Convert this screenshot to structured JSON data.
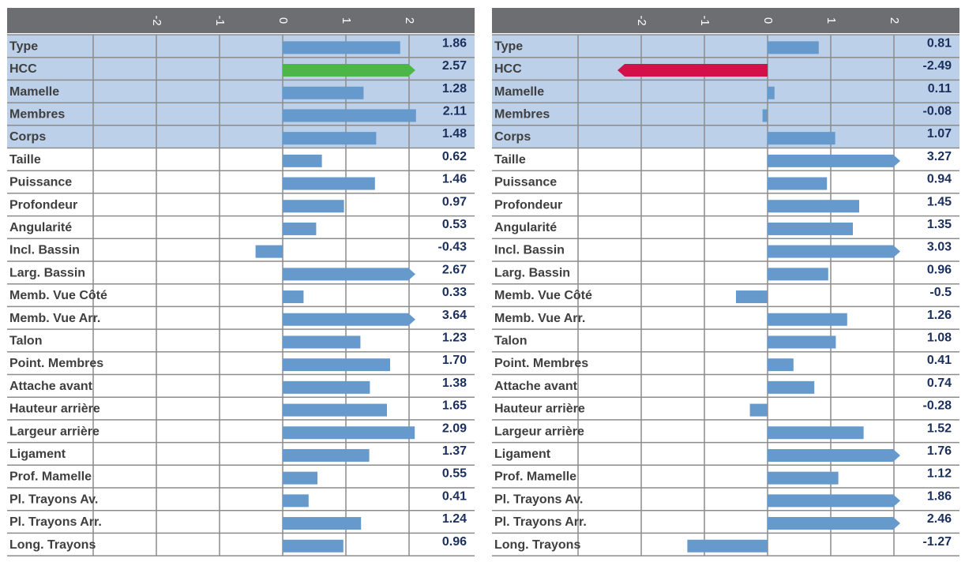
{
  "colors": {
    "header": "#6d6e71",
    "highlight_band": "#bdd0e9",
    "bar": "#6699cc",
    "positive_accent": "#4cb748",
    "negative_accent": "#d4104a",
    "grid": "#8c8c8c",
    "trait_text": "#3f3f3f",
    "value_text": "#1b2f5c"
  },
  "chart_data": [
    {
      "type": "bar",
      "orientation": "horizontal",
      "x_ticks": [
        "-2",
        "-1",
        "0",
        "1",
        "2"
      ],
      "xlim": [
        -4.5,
        2.5
      ],
      "highlighted_categories": [
        "Type",
        "HCC",
        "Mamelle",
        "Membres",
        "Corps"
      ],
      "categories": [
        "Type",
        "HCC",
        "Mamelle",
        "Membres",
        "Corps",
        "Taille",
        "Puissance",
        "Profondeur",
        "Angularité",
        "Incl. Bassin",
        "Larg. Bassin",
        "Memb. Vue Côté",
        "Memb. Vue Arr.",
        "Talon",
        "Point. Membres",
        "Attache avant",
        "Hauteur arrière",
        "Largeur arrière",
        "Ligament",
        "Prof. Mamelle",
        "Pl. Trayons Av.",
        "Pl. Trayons Arr.",
        "Long. Trayons"
      ],
      "values": [
        1.86,
        2.57,
        1.28,
        2.11,
        1.48,
        0.62,
        1.46,
        0.97,
        0.53,
        -0.43,
        2.67,
        0.33,
        3.64,
        1.23,
        1.7,
        1.38,
        1.65,
        2.09,
        1.37,
        0.55,
        0.41,
        1.24,
        0.96
      ],
      "value_labels": [
        "1.86",
        "2.57",
        "1.28",
        "2.11",
        "1.48",
        "0.62",
        "1.46",
        "0.97",
        "0.53",
        "-0.43",
        "2.67",
        "0.33",
        "3.64",
        "1.23",
        "1.70",
        "1.38",
        "1.65",
        "2.09",
        "1.37",
        "0.55",
        "0.41",
        "1.24",
        "0.96"
      ],
      "accent_category": "HCC",
      "accent_color": "#4cb748"
    },
    {
      "type": "bar",
      "orientation": "horizontal",
      "x_ticks": [
        "-2",
        "-1",
        "0",
        "1",
        "2"
      ],
      "xlim": [
        -2.5,
        2.5
      ],
      "highlighted_categories": [
        "Type",
        "HCC",
        "Mamelle",
        "Membres",
        "Corps"
      ],
      "categories": [
        "Type",
        "HCC",
        "Mamelle",
        "Membres",
        "Corps",
        "Taille",
        "Puissance",
        "Profondeur",
        "Angularité",
        "Incl. Bassin",
        "Larg. Bassin",
        "Memb. Vue Côté",
        "Memb. Vue Arr.",
        "Talon",
        "Point. Membres",
        "Attache avant",
        "Hauteur arrière",
        "Largeur arrière",
        "Ligament",
        "Prof. Mamelle",
        "Pl. Trayons Av.",
        "Pl. Trayons Arr.",
        "Long. Trayons"
      ],
      "values": [
        0.81,
        -2.49,
        0.11,
        -0.08,
        1.07,
        3.27,
        0.94,
        1.45,
        1.35,
        3.03,
        0.96,
        -0.5,
        1.26,
        1.08,
        0.41,
        0.74,
        -0.28,
        1.52,
        1.76,
        1.12,
        1.86,
        2.46,
        -1.27
      ],
      "value_labels": [
        "0.81",
        "-2.49",
        "0.11",
        "-0.08",
        "1.07",
        "3.27",
        "0.94",
        "1.45",
        "1.35",
        "3.03",
        "0.96",
        "-0.5",
        "1.26",
        "1.08",
        "0.41",
        "0.74",
        "-0.28",
        "1.52",
        "1.76",
        "1.12",
        "1.86",
        "2.46",
        "-1.27"
      ],
      "accent_category": "HCC",
      "accent_color": "#d4104a"
    }
  ]
}
